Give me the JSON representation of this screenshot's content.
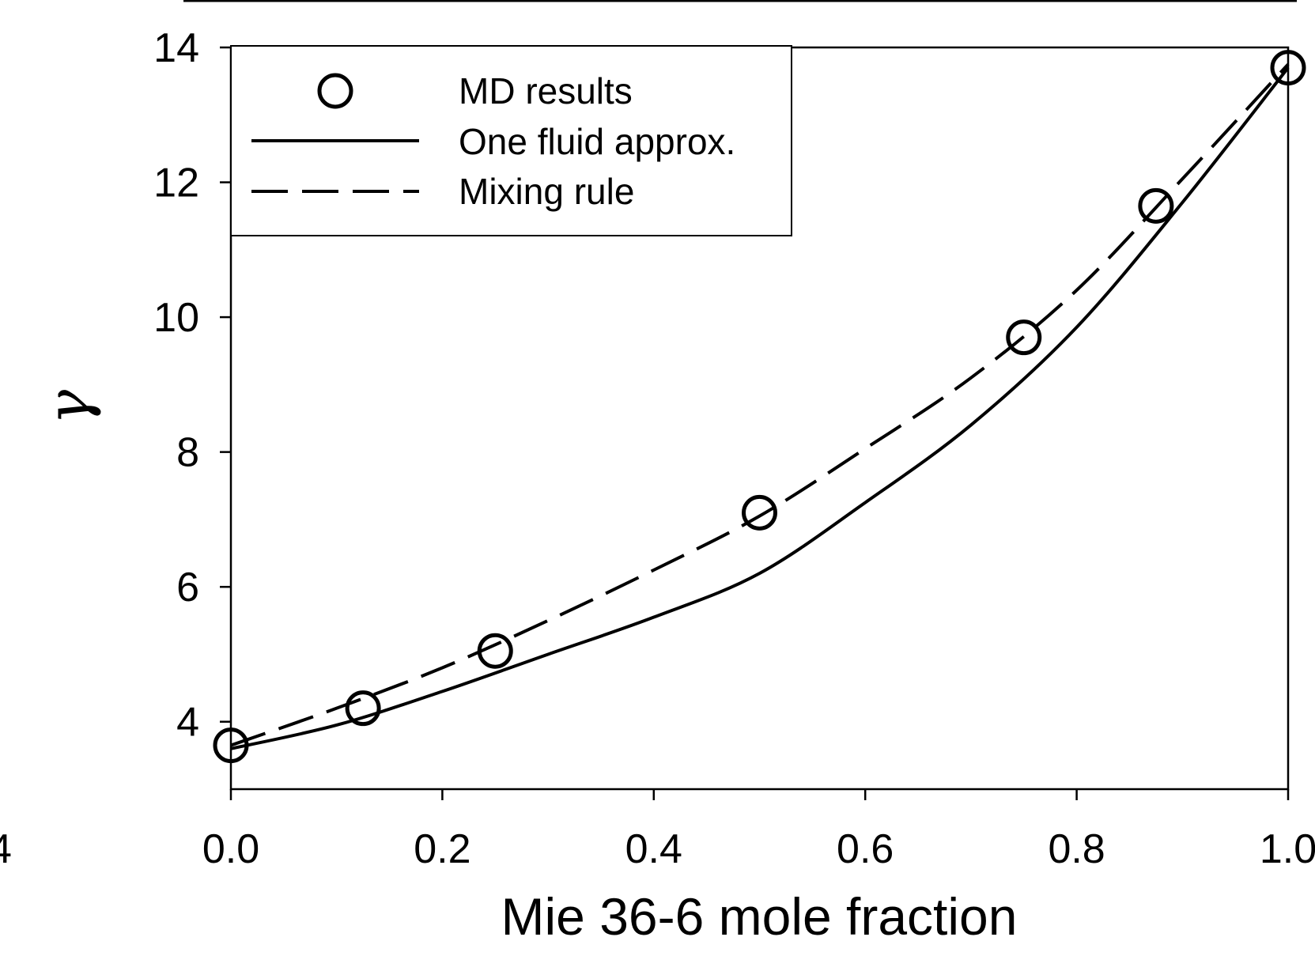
{
  "chart_data": {
    "type": "line",
    "xlabel": "Mie 36-6 mole fraction",
    "ylabel": "γ",
    "xlim": [
      0.0,
      1.0
    ],
    "ylim": [
      3.0,
      14.0
    ],
    "xticks": [
      "0.0",
      "0.2",
      "0.4",
      "0.6",
      "0.8",
      "1.0"
    ],
    "yticks": [
      "4",
      "6",
      "8",
      "10",
      "12",
      "14"
    ],
    "xtick_values": [
      0.0,
      0.2,
      0.4,
      0.6,
      0.8,
      1.0
    ],
    "ytick_values": [
      4,
      6,
      8,
      10,
      12,
      14
    ],
    "grid": false,
    "legend_position": "top-left",
    "clipped_left_label": "4",
    "series": [
      {
        "name": "MD results",
        "style": "open-circle",
        "x": [
          0.0,
          0.125,
          0.25,
          0.5,
          0.75,
          0.875,
          1.0
        ],
        "y": [
          3.65,
          4.2,
          5.05,
          7.1,
          9.7,
          11.65,
          13.7
        ]
      },
      {
        "name": "One fluid approx.",
        "style": "solid",
        "x": [
          0.0,
          0.1,
          0.2,
          0.3,
          0.4,
          0.5,
          0.6,
          0.7,
          0.8,
          0.9,
          1.0
        ],
        "y": [
          3.6,
          3.95,
          4.45,
          5.0,
          5.55,
          6.2,
          7.25,
          8.4,
          9.85,
          11.7,
          13.7
        ]
      },
      {
        "name": "Mixing rule",
        "style": "dashed",
        "x": [
          0.0,
          0.1,
          0.2,
          0.3,
          0.4,
          0.5,
          0.6,
          0.7,
          0.8,
          0.9,
          1.0
        ],
        "y": [
          3.65,
          4.2,
          4.8,
          5.5,
          6.25,
          7.05,
          8.05,
          9.1,
          10.4,
          12.05,
          13.75
        ]
      }
    ]
  }
}
